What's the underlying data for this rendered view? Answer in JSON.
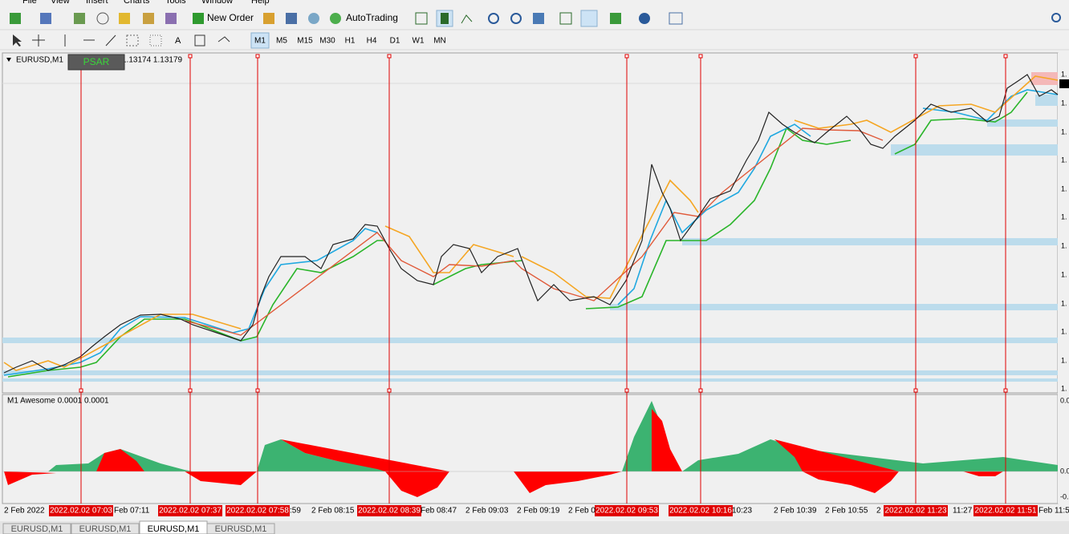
{
  "menu": [
    "File",
    "View",
    "Insert",
    "Charts",
    "Tools",
    "Window",
    "Help"
  ],
  "toolbar": {
    "new_order": "New Order",
    "auto_trading": "AutoTrading"
  },
  "timeframes": [
    "M1",
    "M5",
    "M15",
    "M30",
    "H1",
    "H4",
    "D1",
    "W1",
    "MN"
  ],
  "chart": {
    "symbol": "EURUSD,M1",
    "prices": "1.13174 1.13179",
    "button": "PSAR",
    "indicator": "M1 Awesome 0.0001 0.0001",
    "price_axis": [
      "1.",
      "1.",
      "1.",
      "1.",
      "1.",
      "1.",
      "1.",
      "1.",
      "1.",
      "1.",
      "1.",
      "1."
    ],
    "indicator_axis": [
      "0.0",
      "0.0",
      "-0."
    ],
    "time_axis": [
      "2 Feb 2022",
      "Feb 07:11",
      ":59",
      "2 Feb 08:15",
      "Feb 08:47",
      "2 Feb 09:03",
      "2 Feb 09:19",
      "2 Feb 0",
      "10:23",
      "2 Feb 10:39",
      "2 Feb 10:55",
      "2",
      "11:27",
      "Feb 11:59"
    ],
    "event_labels": [
      "2022.02.02 07:03",
      "2022.02.02 07:37",
      "2022.02.02 07:58",
      "2022.02.02 08:39",
      "2022.02.02 09:53",
      "2022.02.02 10:16",
      "2022.02.02 11:23",
      "2022.02.02 11:51"
    ]
  },
  "tabs": [
    "EURUSD,M1",
    "EURUSD,M1",
    "EURUSD,M1",
    "EURUSD,M1"
  ]
}
